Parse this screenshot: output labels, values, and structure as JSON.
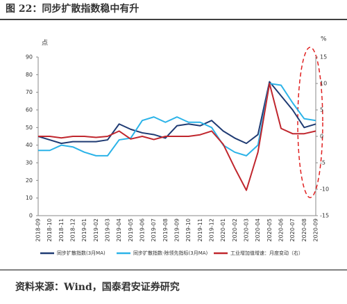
{
  "header": {
    "title": "图 22：同步扩散指数稳中有升"
  },
  "chart_data": {
    "type": "line",
    "y_label": "点",
    "y2_label": "%",
    "categories": [
      "2018-09",
      "2018-10",
      "2018-11",
      "2018-12",
      "2019-01",
      "2019-02",
      "2019-03",
      "2019-04",
      "2019-05",
      "2019-06",
      "2019-07",
      "2019-08",
      "2019-09",
      "2019-10",
      "2019-11",
      "2019-12",
      "2020-01",
      "2020-02",
      "2020-03",
      "2020-04",
      "2020-05",
      "2020-06",
      "2020-07",
      "2020-08",
      "2020-09"
    ],
    "series": [
      {
        "name": "同步扩散指数(3月MA)",
        "color": "#1f3b73",
        "values": [
          45,
          43,
          41,
          42,
          42,
          42,
          43,
          52,
          49,
          47,
          46,
          44,
          51,
          52,
          51,
          54,
          48,
          44,
          41,
          46,
          76,
          68,
          60,
          50,
          52
        ]
      },
      {
        "name": "同步扩散指数-除领先指标(3月MA)",
        "color": "#2bb3e8",
        "values": [
          37,
          37,
          40,
          39,
          36,
          34,
          34,
          43,
          44,
          54,
          56,
          53,
          56,
          53,
          53,
          50,
          40,
          36,
          34,
          40,
          75,
          74,
          64,
          55,
          54
        ]
      },
      {
        "name": "工业增加值增速：月度变动（右）",
        "color": "#c0262d",
        "axis": "y2",
        "values": [
          0,
          0,
          -0.3,
          0,
          0,
          -0.2,
          0,
          1,
          -0.5,
          0,
          -0.6,
          0,
          0,
          0,
          0.3,
          1,
          -1.5,
          -6,
          -10.2,
          -3,
          10,
          1.5,
          0.5,
          0.5,
          1
        ]
      }
    ],
    "ylim": [
      0,
      90
    ],
    "yticks": [
      0,
      10,
      20,
      30,
      40,
      50,
      60,
      70,
      80,
      90
    ],
    "y2lim": [
      -15,
      15
    ],
    "y2ticks": [
      -15,
      -10,
      -5,
      0,
      5,
      10,
      15
    ],
    "legend": "bottom"
  },
  "footer": {
    "source": "资料来源：Wind，国泰君安证券研究"
  }
}
